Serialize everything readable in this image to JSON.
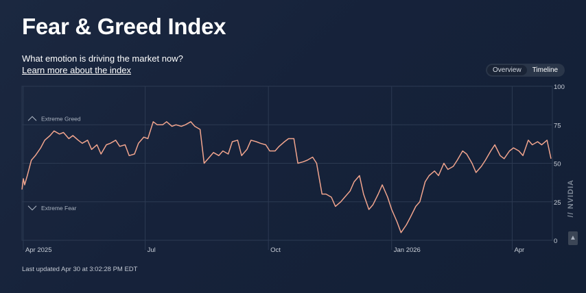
{
  "header": {
    "title": "Fear & Greed Index",
    "subtitle": "What emotion is driving the market now?",
    "learn_more": "Learn more about the index"
  },
  "toggle": {
    "options": [
      "Overview",
      "Timeline"
    ],
    "selected": "Timeline"
  },
  "footer": {
    "last_updated": "Last updated Apr 30 at 3:02:28 PM EDT"
  },
  "watermark": {
    "text": "// NVIDIA",
    "button_icon": "up-arrow-icon"
  },
  "colors": {
    "line": "#f2a58e",
    "grid": "#2c3a52",
    "axis_text": "#c9cfd8",
    "zone_text": "#aab3c0"
  },
  "chart_data": {
    "type": "line",
    "title": "",
    "xlabel": "",
    "ylabel": "",
    "ylim": [
      0,
      100
    ],
    "xlim": [
      "2025-03-31",
      "2026-05-01"
    ],
    "y_ticks": [
      100,
      75,
      50,
      25,
      0
    ],
    "x_ticks": [
      {
        "label": "Apr 2025",
        "date": "2025-04-01"
      },
      {
        "label": "Jul",
        "date": "2025-07-01"
      },
      {
        "label": "Oct",
        "date": "2025-10-01"
      },
      {
        "label": "Jan 2026",
        "date": "2026-01-01"
      },
      {
        "label": "Apr",
        "date": "2026-04-01"
      }
    ],
    "zones": [
      {
        "label": "Extreme Greed",
        "icon": "chevron-up-icon",
        "value": 79
      },
      {
        "label": "Extreme Fear",
        "icon": "chevron-down-icon",
        "value": 21
      }
    ],
    "grid": true,
    "series": [
      {
        "points": [
          [
            "2025-03-31",
            33
          ],
          [
            "2025-04-01",
            40
          ],
          [
            "2025-04-02",
            36
          ],
          [
            "2025-04-04",
            42
          ],
          [
            "2025-04-07",
            52
          ],
          [
            "2025-04-10",
            55
          ],
          [
            "2025-04-14",
            60
          ],
          [
            "2025-04-17",
            65
          ],
          [
            "2025-04-21",
            68
          ],
          [
            "2025-04-24",
            71
          ],
          [
            "2025-04-28",
            69
          ],
          [
            "2025-05-01",
            70
          ],
          [
            "2025-05-05",
            66
          ],
          [
            "2025-05-08",
            68
          ],
          [
            "2025-05-12",
            65
          ],
          [
            "2025-05-15",
            63
          ],
          [
            "2025-05-19",
            65
          ],
          [
            "2025-05-22",
            59
          ],
          [
            "2025-05-26",
            62
          ],
          [
            "2025-05-29",
            56
          ],
          [
            "2025-06-02",
            62
          ],
          [
            "2025-06-05",
            63
          ],
          [
            "2025-06-09",
            65
          ],
          [
            "2025-06-12",
            61
          ],
          [
            "2025-06-16",
            62
          ],
          [
            "2025-06-19",
            55
          ],
          [
            "2025-06-23",
            56
          ],
          [
            "2025-06-26",
            63
          ],
          [
            "2025-06-30",
            67
          ],
          [
            "2025-07-03",
            66
          ],
          [
            "2025-07-07",
            77
          ],
          [
            "2025-07-10",
            75
          ],
          [
            "2025-07-14",
            75
          ],
          [
            "2025-07-17",
            77
          ],
          [
            "2025-07-21",
            74
          ],
          [
            "2025-07-24",
            75
          ],
          [
            "2025-07-28",
            74
          ],
          [
            "2025-07-31",
            75
          ],
          [
            "2025-08-04",
            77
          ],
          [
            "2025-08-07",
            74
          ],
          [
            "2025-08-11",
            72
          ],
          [
            "2025-08-14",
            50
          ],
          [
            "2025-08-18",
            54
          ],
          [
            "2025-08-21",
            57
          ],
          [
            "2025-08-25",
            55
          ],
          [
            "2025-08-28",
            58
          ],
          [
            "2025-09-01",
            56
          ],
          [
            "2025-09-04",
            64
          ],
          [
            "2025-09-08",
            65
          ],
          [
            "2025-09-11",
            55
          ],
          [
            "2025-09-15",
            59
          ],
          [
            "2025-09-18",
            65
          ],
          [
            "2025-09-22",
            64
          ],
          [
            "2025-09-25",
            63
          ],
          [
            "2025-09-29",
            62
          ],
          [
            "2025-10-02",
            58
          ],
          [
            "2025-10-06",
            58
          ],
          [
            "2025-10-09",
            61
          ],
          [
            "2025-10-13",
            64
          ],
          [
            "2025-10-16",
            66
          ],
          [
            "2025-10-20",
            66
          ],
          [
            "2025-10-23",
            50
          ],
          [
            "2025-10-27",
            51
          ],
          [
            "2025-10-30",
            52
          ],
          [
            "2025-11-03",
            54
          ],
          [
            "2025-11-06",
            50
          ],
          [
            "2025-11-10",
            30
          ],
          [
            "2025-11-13",
            30
          ],
          [
            "2025-11-17",
            28
          ],
          [
            "2025-11-20",
            22
          ],
          [
            "2025-11-24",
            25
          ],
          [
            "2025-11-27",
            28
          ],
          [
            "2025-12-01",
            32
          ],
          [
            "2025-12-04",
            38
          ],
          [
            "2025-12-08",
            42
          ],
          [
            "2025-12-11",
            30
          ],
          [
            "2025-12-15",
            20
          ],
          [
            "2025-12-18",
            23
          ],
          [
            "2025-12-22",
            30
          ],
          [
            "2025-12-25",
            36
          ],
          [
            "2025-12-29",
            28
          ],
          [
            "2026-01-01",
            20
          ],
          [
            "2026-01-05",
            12
          ],
          [
            "2026-01-08",
            5
          ],
          [
            "2026-01-12",
            10
          ],
          [
            "2026-01-15",
            15
          ],
          [
            "2026-01-19",
            22
          ],
          [
            "2026-01-22",
            25
          ],
          [
            "2026-01-26",
            38
          ],
          [
            "2026-01-29",
            42
          ],
          [
            "2026-02-02",
            45
          ],
          [
            "2026-02-05",
            42
          ],
          [
            "2026-02-09",
            50
          ],
          [
            "2026-02-12",
            46
          ],
          [
            "2026-02-16",
            48
          ],
          [
            "2026-02-19",
            52
          ],
          [
            "2026-02-23",
            58
          ],
          [
            "2026-02-26",
            56
          ],
          [
            "2026-03-02",
            50
          ],
          [
            "2026-03-05",
            44
          ],
          [
            "2026-03-09",
            48
          ],
          [
            "2026-03-12",
            52
          ],
          [
            "2026-03-16",
            58
          ],
          [
            "2026-03-19",
            62
          ],
          [
            "2026-03-23",
            55
          ],
          [
            "2026-03-26",
            53
          ],
          [
            "2026-03-30",
            58
          ],
          [
            "2026-04-02",
            60
          ],
          [
            "2026-04-06",
            58
          ],
          [
            "2026-04-09",
            55
          ],
          [
            "2026-04-13",
            65
          ],
          [
            "2026-04-16",
            62
          ],
          [
            "2026-04-20",
            64
          ],
          [
            "2026-04-23",
            62
          ],
          [
            "2026-04-27",
            65
          ],
          [
            "2026-04-30",
            53
          ]
        ]
      }
    ]
  }
}
